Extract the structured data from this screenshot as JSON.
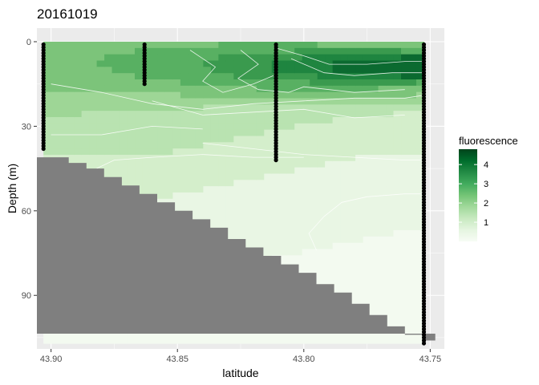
{
  "chart_data": {
    "type": "heatmap",
    "title": "20161019",
    "xlabel": "latitude",
    "ylabel": "Depth (m)",
    "x_reversed": true,
    "y_reversed": true,
    "xlim": [
      43.7444,
      43.9056
    ],
    "ylim": [
      0,
      109
    ],
    "x_ticks": [
      43.9,
      43.85,
      43.8,
      43.75
    ],
    "x_tick_labels": [
      "43.90",
      "43.85",
      "43.80",
      "43.75"
    ],
    "y_ticks": [
      0,
      30,
      60,
      90
    ],
    "y_tick_labels": [
      "0",
      "30",
      "60",
      "90"
    ],
    "grid": true,
    "panel_background": "#ebebeb",
    "legend": {
      "title": "fluorescence",
      "position": "right",
      "range": [
        0,
        4.8
      ],
      "ticks": [
        1,
        2,
        3,
        4
      ],
      "tick_labels": [
        "1",
        "2",
        "3",
        "4"
      ],
      "colors": [
        "#f7fcf5",
        "#e5f5e0",
        "#c7e9c0",
        "#a1d99b",
        "#74c476",
        "#41ab5d",
        "#238b45",
        "#006d2c",
        "#00441b"
      ]
    },
    "field_color_scale": [
      "#f3faf0",
      "#e9f6e4",
      "#d4eecb",
      "#b9e3b1",
      "#9ed696",
      "#7cc47a",
      "#58b062",
      "#3a9a4e",
      "#1f8540",
      "#0b6a30"
    ],
    "stations": [
      {
        "latitude": 43.903,
        "depth_min": 1,
        "depth_max": 38,
        "step": 1
      },
      {
        "latitude": 43.863,
        "depth_min": 1,
        "depth_max": 15,
        "step": 1
      },
      {
        "latitude": 43.811,
        "depth_min": 1,
        "depth_max": 42,
        "step": 1
      },
      {
        "latitude": 43.7525,
        "depth_min": 1,
        "depth_max": 107,
        "step": 1
      }
    ],
    "bathymetry": {
      "color": "#7f7f7f",
      "points": [
        {
          "latitude": 43.9056,
          "depth": 41
        },
        {
          "latitude": 43.9,
          "depth": 41
        },
        {
          "latitude": 43.893,
          "depth": 43
        },
        {
          "latitude": 43.886,
          "depth": 45
        },
        {
          "latitude": 43.879,
          "depth": 48
        },
        {
          "latitude": 43.872,
          "depth": 51
        },
        {
          "latitude": 43.865,
          "depth": 54
        },
        {
          "latitude": 43.858,
          "depth": 57
        },
        {
          "latitude": 43.851,
          "depth": 60
        },
        {
          "latitude": 43.844,
          "depth": 63
        },
        {
          "latitude": 43.837,
          "depth": 66
        },
        {
          "latitude": 43.83,
          "depth": 70
        },
        {
          "latitude": 43.823,
          "depth": 73
        },
        {
          "latitude": 43.816,
          "depth": 76
        },
        {
          "latitude": 43.809,
          "depth": 79
        },
        {
          "latitude": 43.802,
          "depth": 82
        },
        {
          "latitude": 43.795,
          "depth": 86
        },
        {
          "latitude": 43.788,
          "depth": 89
        },
        {
          "latitude": 43.781,
          "depth": 93
        },
        {
          "latitude": 43.774,
          "depth": 97
        },
        {
          "latitude": 43.767,
          "depth": 101
        },
        {
          "latitude": 43.76,
          "depth": 104
        },
        {
          "latitude": 43.753,
          "depth": 106
        },
        {
          "latitude": 43.748,
          "depth": 106
        }
      ]
    }
  }
}
